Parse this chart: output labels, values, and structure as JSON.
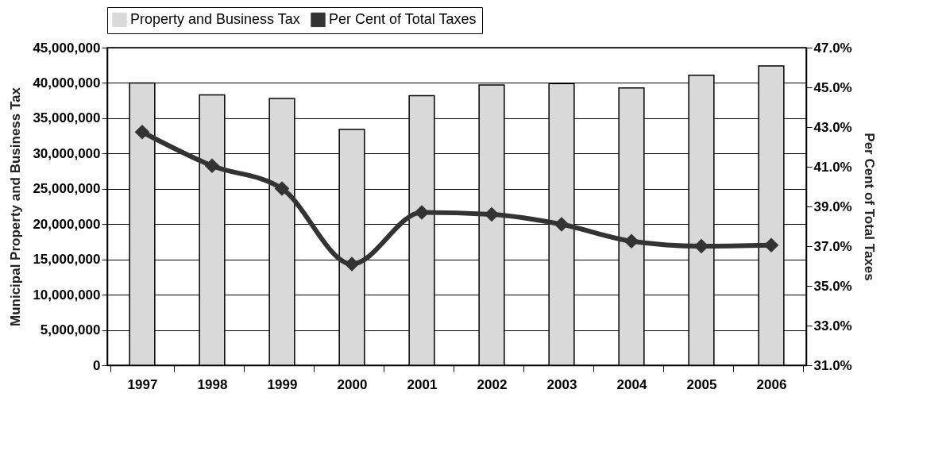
{
  "chart_data": {
    "type": "bar",
    "ylabel": "Municipal Property and Business Tax",
    "y2label": "Per Cent of Total Taxes",
    "categories": [
      "1997",
      "1998",
      "1999",
      "2000",
      "2001",
      "2002",
      "2003",
      "2004",
      "2005",
      "2006"
    ],
    "series": [
      {
        "name": "Property and Business Tax",
        "color": "#d9d9d9",
        "values": [
          40000000,
          38300000,
          37800000,
          33400000,
          38200000,
          39700000,
          39900000,
          39300000,
          41100000,
          42400000
        ]
      },
      {
        "name": "Per Cent of Total Taxes",
        "type": "line",
        "axis": "y2",
        "color": "#333333",
        "marker": "diamond",
        "values": [
          42.75,
          41.05,
          39.9,
          36.1,
          38.7,
          38.6,
          38.1,
          37.25,
          37.0,
          37.05
        ]
      }
    ],
    "ylim": [
      0,
      45000000
    ],
    "yticks": [
      {
        "value": 0,
        "label": "0"
      },
      {
        "value": 5000000,
        "label": "5,000,000"
      },
      {
        "value": 10000000,
        "label": "10,000,000"
      },
      {
        "value": 15000000,
        "label": "15,000,000"
      },
      {
        "value": 20000000,
        "label": "20,000,000"
      },
      {
        "value": 25000000,
        "label": "25,000,000"
      },
      {
        "value": 30000000,
        "label": "30,000,000"
      },
      {
        "value": 35000000,
        "label": "35,000,000"
      },
      {
        "value": 40000000,
        "label": "40,000,000"
      },
      {
        "value": 45000000,
        "label": "45,000,000"
      }
    ],
    "y2lim": [
      31,
      47
    ],
    "y2ticks": [
      {
        "value": 31,
        "label": "31.0%"
      },
      {
        "value": 33,
        "label": "33.0%"
      },
      {
        "value": 35,
        "label": "35.0%"
      },
      {
        "value": 37,
        "label": "37.0%"
      },
      {
        "value": 39,
        "label": "39.0%"
      },
      {
        "value": 41,
        "label": "41.0%"
      },
      {
        "value": 43,
        "label": "43.0%"
      },
      {
        "value": 45,
        "label": "45.0%"
      },
      {
        "value": 47,
        "label": "47.0%"
      }
    ],
    "grid": "y",
    "legend": "top"
  }
}
